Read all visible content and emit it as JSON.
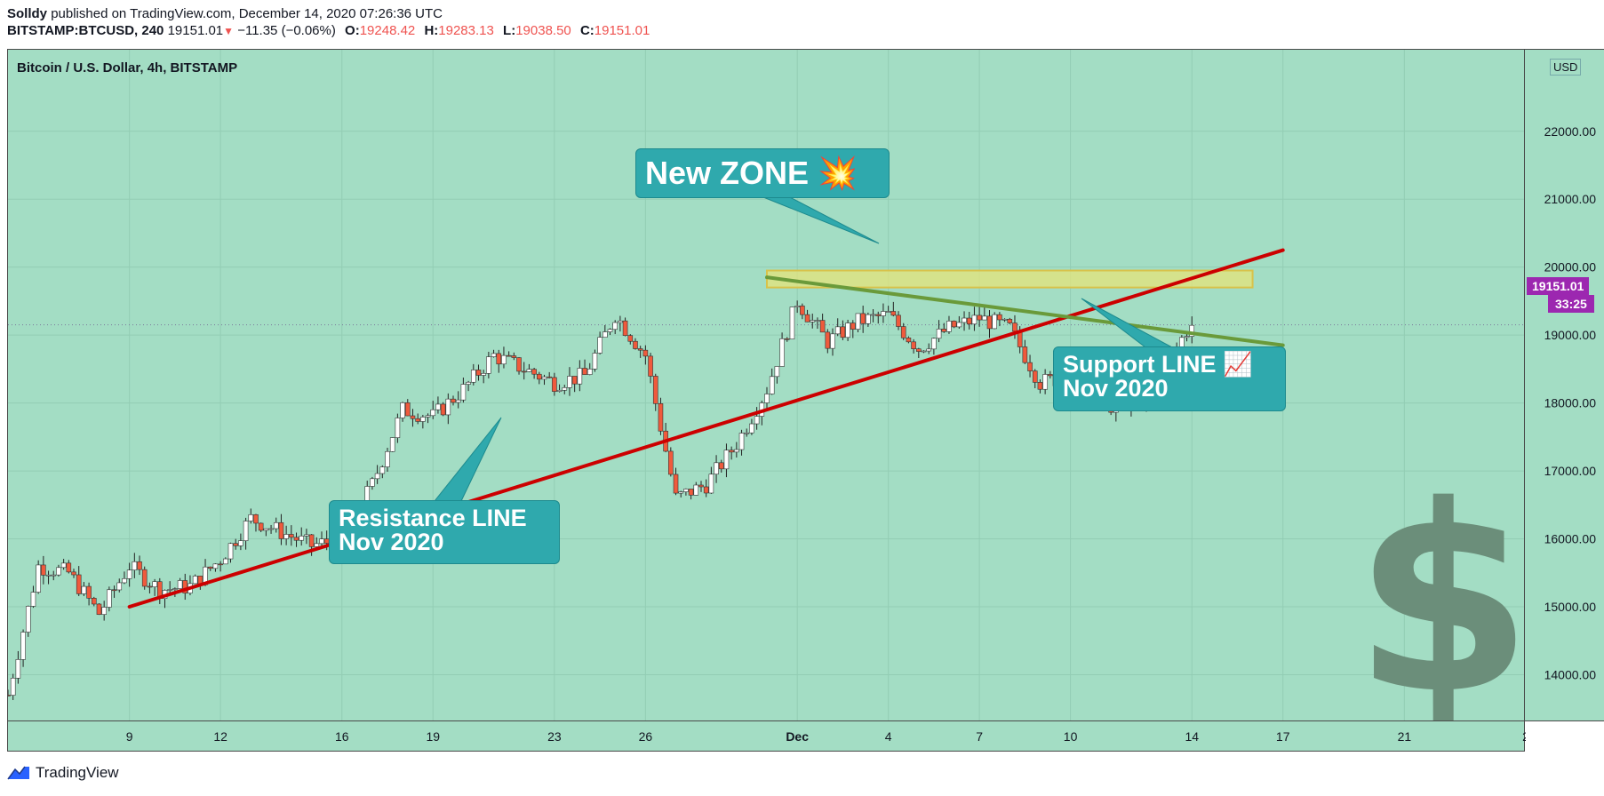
{
  "header": {
    "author": "Solldy",
    "published_text": "published on TradingView.com, December 14, 2020 07:26:36 UTC",
    "symbol": "BITSTAMP:BTCUSD, 240",
    "last": "19151.01",
    "change": "−11.35 (−0.06%)",
    "open_label": "O:",
    "open": "19248.42",
    "high_label": "H:",
    "high": "19283.13",
    "low_label": "L:",
    "low": "19038.50",
    "close_label": "C:",
    "close": "19151.01"
  },
  "chart_title": "Bitcoin / U.S. Dollar, 4h, BITSTAMP",
  "currency_label": "USD",
  "last_price_tag": "19151.01",
  "countdown_tag": "33:25",
  "callouts": {
    "new_zone": "New ZONE 💥",
    "support": "Support LINE 📈\nNov 2020",
    "resistance": "Resistance LINE\nNov 2020"
  },
  "footer": {
    "brand": "TradingView"
  },
  "icons": {
    "dollar": "dollar-sign-icon",
    "logo": "tradingview-logo-icon",
    "arrow": "down-arrow-icon"
  },
  "colors": {
    "background": "#a3ddc4",
    "up_candle": "#ffffff",
    "down_candle": "#ef5a3c",
    "resistance_line": "#cc0000",
    "support_line": "#6a9a3a",
    "zone_fill": "#e6e37a",
    "callout": "#2fa9ad",
    "price_tag": "#9c27b0"
  },
  "chart_data": {
    "type": "candlestick",
    "title": "Bitcoin / U.S. Dollar, 4h, BITSTAMP",
    "x_ticks": [
      "9",
      "12",
      "16",
      "19",
      "23",
      "26",
      "Dec",
      "4",
      "7",
      "10",
      "14",
      "17",
      "21",
      "2"
    ],
    "x_tick_dates": [
      "2020-11-09",
      "2020-11-12",
      "2020-11-16",
      "2020-11-19",
      "2020-11-23",
      "2020-11-26",
      "2020-12-01",
      "2020-12-04",
      "2020-12-07",
      "2020-12-10",
      "2020-12-14",
      "2020-12-17",
      "2020-12-21",
      "2020-12-25"
    ],
    "y_ticks": [
      14000,
      15000,
      16000,
      17000,
      18000,
      19000,
      20000,
      21000,
      22000
    ],
    "y_tick_labels": [
      "14000.00",
      "15000.00",
      "16000.00",
      "17000.00",
      "18000.00",
      "19000.00",
      "20000.00",
      "21000.00",
      "22000.00"
    ],
    "ylim": [
      13300,
      23200
    ],
    "xlim": [
      "2020-11-05",
      "2020-12-25"
    ],
    "price_path": [
      [
        "2020-11-05",
        13700
      ],
      [
        "2020-11-06",
        15600
      ],
      [
        "2020-11-07",
        15500
      ],
      [
        "2020-11-08",
        14900
      ],
      [
        "2020-11-09",
        15600
      ],
      [
        "2020-11-10",
        15250
      ],
      [
        "2020-11-11",
        15300
      ],
      [
        "2020-11-12",
        15700
      ],
      [
        "2020-11-13",
        16300
      ],
      [
        "2020-11-14",
        16100
      ],
      [
        "2020-11-15",
        15900
      ],
      [
        "2020-11-16",
        16000
      ],
      [
        "2020-11-17",
        16800
      ],
      [
        "2020-11-18",
        17900
      ],
      [
        "2020-11-19",
        17800
      ],
      [
        "2020-11-20",
        18200
      ],
      [
        "2020-11-21",
        18700
      ],
      [
        "2020-11-22",
        18500
      ],
      [
        "2020-11-23",
        18300
      ],
      [
        "2020-11-24",
        18400
      ],
      [
        "2020-11-25",
        19300
      ],
      [
        "2020-11-26",
        18700
      ],
      [
        "2020-11-27",
        16600
      ],
      [
        "2020-11-28",
        16800
      ],
      [
        "2020-11-29",
        17400
      ],
      [
        "2020-11-30",
        18200
      ],
      [
        "2020-12-01",
        19500
      ],
      [
        "2020-12-02",
        18900
      ],
      [
        "2020-12-03",
        19200
      ],
      [
        "2020-12-04",
        19300
      ],
      [
        "2020-12-05",
        18800
      ],
      [
        "2020-12-06",
        19100
      ],
      [
        "2020-12-07",
        19250
      ],
      [
        "2020-12-08",
        19100
      ],
      [
        "2020-12-09",
        18300
      ],
      [
        "2020-12-10",
        18400
      ],
      [
        "2020-12-11",
        18000
      ],
      [
        "2020-12-12",
        17900
      ],
      [
        "2020-12-13",
        18400
      ],
      [
        "2020-12-14",
        19200
      ],
      [
        "2020-12-14",
        19151
      ]
    ],
    "last_price": 19151.01,
    "annotations": [
      {
        "type": "trendline",
        "name": "Resistance LINE",
        "color": "#cc0000",
        "points": [
          [
            "2020-11-09",
            15000
          ],
          [
            "2020-12-17",
            20250
          ]
        ]
      },
      {
        "type": "trendline",
        "name": "Support LINE",
        "color": "#6a9a3a",
        "points": [
          [
            "2020-11-30",
            19850
          ],
          [
            "2020-12-17",
            18850
          ]
        ]
      },
      {
        "type": "zone",
        "name": "New ZONE",
        "x_start": "2020-11-30",
        "x_end": "2020-12-16",
        "y_low": 19700,
        "y_high": 19950
      }
    ]
  }
}
